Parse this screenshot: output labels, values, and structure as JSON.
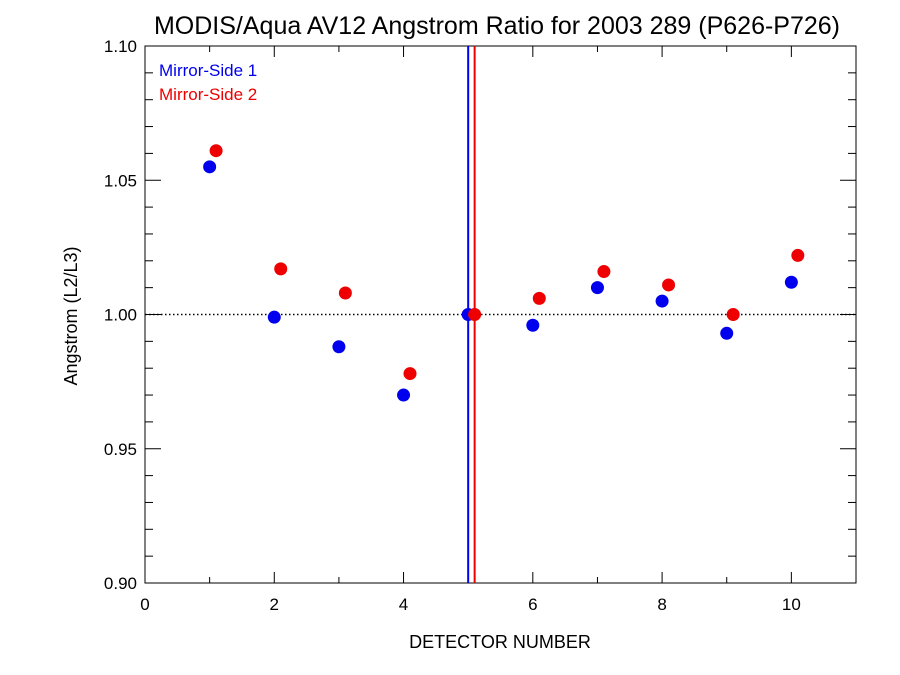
{
  "chart_data": {
    "type": "scatter",
    "title": "MODIS/Aqua AV12 Angstrom Ratio for 2003 289 (P626-P726)",
    "xlabel": "DETECTOR NUMBER",
    "ylabel": "Angstrom (L2/L3)",
    "xlim": [
      0,
      11
    ],
    "ylim": [
      0.9,
      1.1
    ],
    "x_ticks": [
      0,
      2,
      4,
      6,
      8,
      10
    ],
    "x_minor_ticks": [
      1,
      3,
      5,
      7,
      9,
      11
    ],
    "y_ticks": [
      0.9,
      0.95,
      1.0,
      1.05,
      1.1
    ],
    "x_tick_labels": [
      "0",
      "2",
      "4",
      "6",
      "8",
      "10"
    ],
    "y_tick_labels": [
      "0.90",
      "0.95",
      "1.00",
      "1.05",
      "1.10"
    ],
    "reference_line_y": 1.0,
    "reference_line_style": "dotted",
    "vertical_lines": [
      {
        "x": 5.0,
        "color": "#0000ee"
      },
      {
        "x": 5.1,
        "color": "#ee0000"
      }
    ],
    "legend_position": "top-left",
    "series": [
      {
        "name": "Mirror-Side 1",
        "color": "#0000ee",
        "x": [
          1,
          2,
          3,
          4,
          5,
          6,
          7,
          8,
          9,
          10
        ],
        "y": [
          1.055,
          0.999,
          0.988,
          0.97,
          1.0,
          0.996,
          1.01,
          1.005,
          0.993,
          1.012
        ]
      },
      {
        "name": "Mirror-Side 2",
        "color": "#ee0000",
        "x": [
          1.1,
          2.1,
          3.1,
          4.1,
          5.1,
          6.1,
          7.1,
          8.1,
          9.1,
          10.1
        ],
        "y": [
          1.061,
          1.017,
          1.008,
          0.978,
          1.0,
          1.006,
          1.016,
          1.011,
          1.0,
          1.022
        ]
      }
    ]
  }
}
